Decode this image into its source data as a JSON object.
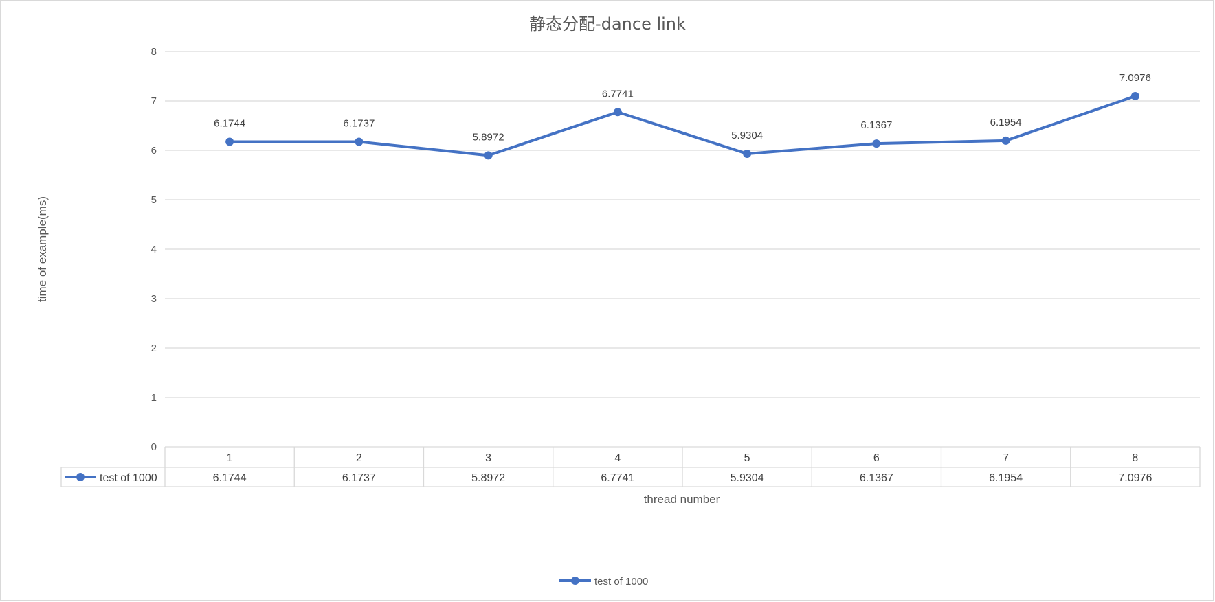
{
  "chart_data": {
    "type": "line",
    "title": "静态分配-dance link",
    "xlabel": "thread number",
    "ylabel": "time of example(ms)",
    "categories": [
      "1",
      "2",
      "3",
      "4",
      "5",
      "6",
      "7",
      "8"
    ],
    "series": [
      {
        "name": "test of 1000",
        "values": [
          6.1744,
          6.1737,
          5.8972,
          6.7741,
          5.9304,
          6.1367,
          6.1954,
          7.0976
        ]
      }
    ],
    "ylim": [
      0,
      8
    ],
    "yticks": [
      0,
      1,
      2,
      3,
      4,
      5,
      6,
      7,
      8
    ],
    "grid": true,
    "data_labels": true,
    "data_table": true,
    "legend_position": "bottom",
    "colors": {
      "series": "#4472c4",
      "grid": "#d9d9d9",
      "text": "#595959"
    }
  }
}
